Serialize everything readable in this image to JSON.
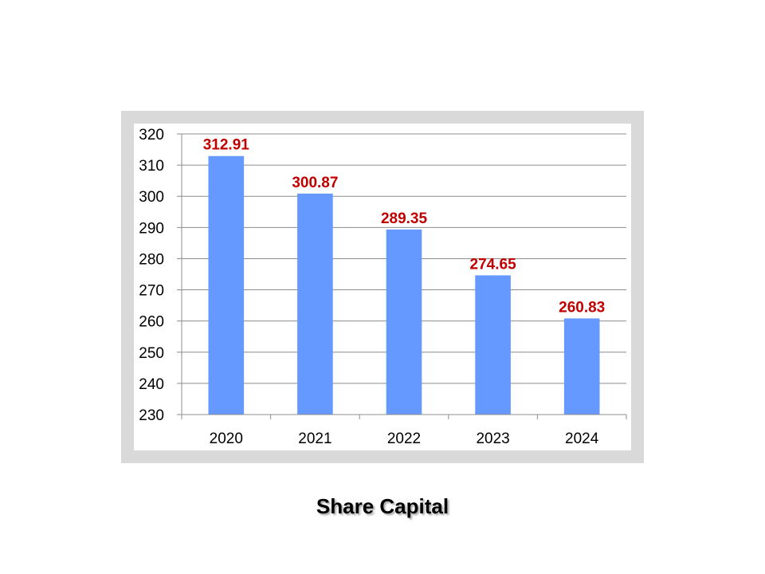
{
  "caption": "Share Capital",
  "colors": {
    "bar": "#6699ff",
    "data_label": "#c00000",
    "gridline": "#8c8c8c",
    "axis": "#8c8c8c",
    "frame": "#d9d9d9",
    "plot_background": "#ffffff"
  },
  "chart_data": {
    "type": "bar",
    "title": "",
    "xlabel": "",
    "ylabel": "",
    "categories": [
      "2020",
      "2021",
      "2022",
      "2023",
      "2024"
    ],
    "values": [
      312.91,
      300.87,
      289.35,
      274.65,
      260.83
    ],
    "data_labels": [
      "312.91",
      "300.87",
      "289.35",
      "274.65",
      "260.83"
    ],
    "ylim": [
      230,
      320
    ],
    "y_ticks": [
      230,
      240,
      250,
      260,
      270,
      280,
      290,
      300,
      310,
      320
    ],
    "y_tick_labels": [
      "230",
      "240",
      "250",
      "260",
      "270",
      "280",
      "290",
      "300",
      "310",
      "320"
    ],
    "grid": true,
    "legend": "none"
  }
}
